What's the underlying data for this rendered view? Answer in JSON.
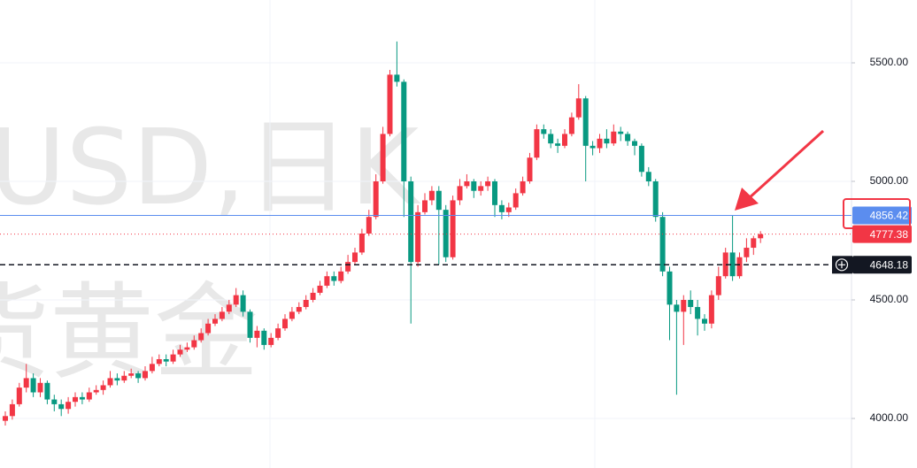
{
  "chart_data": {
    "type": "candlestick",
    "watermark": [
      "USD,日K",
      "货黄金"
    ],
    "up_color": "#f23645",
    "down_color": "#089981",
    "ylim": [
      3791,
      5765
    ],
    "yticks": [
      {
        "value": 4000,
        "label": "4000.00"
      },
      {
        "value": 4500,
        "label": "4500.00"
      },
      {
        "value": 5000,
        "label": "5000.00"
      },
      {
        "value": 5500,
        "label": "5500.00"
      }
    ],
    "grid": true,
    "open": [
      3990,
      4010,
      4060,
      4130,
      4170,
      4110,
      4150,
      4080,
      4060,
      4040,
      4070,
      4090,
      4080,
      4110,
      4120,
      4140,
      4170,
      4160,
      4180,
      4190,
      4170,
      4200,
      4230,
      4250,
      4240,
      4270,
      4290,
      4300,
      4330,
      4360,
      4400,
      4420,
      4450,
      4480,
      4520,
      4450,
      4340,
      4370,
      4310,
      4340,
      4380,
      4420,
      4450,
      4470,
      4500,
      4530,
      4560,
      4600,
      4580,
      4620,
      4660,
      4700,
      4780,
      4850,
      5000,
      5200,
      5450,
      5420,
      5000,
      4660,
      4870,
      4920,
      4960,
      4880,
      4680,
      4920,
      4980,
      5000,
      4960,
      4980,
      5000,
      4900,
      4870,
      4890,
      4950,
      5000,
      5100,
      5220,
      5200,
      5160,
      5150,
      5200,
      5270,
      5350,
      5150,
      5140,
      5180,
      5160,
      5210,
      5200,
      5170,
      5150,
      5040,
      5000,
      4850,
      4620,
      4480,
      4450,
      4500,
      4470,
      4420,
      4400,
      4520,
      4600,
      4700,
      4600,
      4680,
      4720,
      4760
    ],
    "high": [
      4030,
      4080,
      4150,
      4230,
      4190,
      4170,
      4160,
      4100,
      4080,
      4090,
      4110,
      4110,
      4130,
      4140,
      4160,
      4200,
      4190,
      4200,
      4210,
      4200,
      4220,
      4260,
      4270,
      4270,
      4290,
      4310,
      4320,
      4350,
      4380,
      4420,
      4440,
      4470,
      4500,
      4550,
      4540,
      4460,
      4390,
      4380,
      4360,
      4400,
      4440,
      4470,
      4490,
      4520,
      4550,
      4580,
      4620,
      4620,
      4640,
      4690,
      4720,
      4800,
      4880,
      5030,
      5230,
      5470,
      5590,
      5430,
      5020,
      4900,
      4950,
      4980,
      4980,
      4900,
      4940,
      5010,
      5030,
      5010,
      5000,
      5020,
      5010,
      4920,
      4910,
      4970,
      5020,
      5120,
      5240,
      5240,
      5220,
      5180,
      5220,
      5290,
      5410,
      5360,
      5170,
      5200,
      5220,
      5240,
      5230,
      5210,
      5180,
      5160,
      5060,
      5010,
      4870,
      4640,
      4500,
      4520,
      4540,
      4500,
      4440,
      4540,
      4640,
      4720,
      4856.42,
      4700,
      4760,
      4770,
      4790
    ],
    "low": [
      3970,
      3995,
      4050,
      4110,
      4090,
      4090,
      4060,
      4030,
      4010,
      4020,
      4050,
      4060,
      4070,
      4100,
      4100,
      4130,
      4140,
      4150,
      4170,
      4150,
      4160,
      4190,
      4220,
      4220,
      4230,
      4260,
      4280,
      4290,
      4320,
      4350,
      4390,
      4410,
      4440,
      4470,
      4430,
      4320,
      4300,
      4290,
      4300,
      4330,
      4370,
      4410,
      4440,
      4460,
      4490,
      4520,
      4550,
      4560,
      4570,
      4610,
      4650,
      4690,
      4770,
      4840,
      4990,
      5190,
      5400,
      4850,
      4400,
      4640,
      4860,
      4900,
      4650,
      4660,
      4670,
      4900,
      4970,
      4930,
      4940,
      4960,
      4850,
      4840,
      4850,
      4880,
      4940,
      4990,
      5090,
      5180,
      5140,
      5120,
      5140,
      5190,
      5260,
      5000,
      5110,
      5120,
      5140,
      5150,
      5170,
      5150,
      5110,
      5020,
      4980,
      4830,
      4600,
      4330,
      4100,
      4310,
      4440,
      4350,
      4370,
      4380,
      4500,
      4590,
      4580,
      4590,
      4660,
      4690,
      4740
    ],
    "close": [
      4010,
      4060,
      4130,
      4170,
      4110,
      4150,
      4080,
      4060,
      4040,
      4070,
      4090,
      4080,
      4110,
      4120,
      4140,
      4170,
      4160,
      4180,
      4190,
      4170,
      4200,
      4230,
      4250,
      4240,
      4270,
      4290,
      4300,
      4330,
      4360,
      4400,
      4420,
      4450,
      4480,
      4520,
      4450,
      4340,
      4370,
      4310,
      4340,
      4380,
      4420,
      4450,
      4470,
      4500,
      4530,
      4560,
      4600,
      4580,
      4620,
      4660,
      4700,
      4780,
      4850,
      5000,
      5200,
      5450,
      5420,
      5000,
      4660,
      4870,
      4920,
      4960,
      4880,
      4680,
      4920,
      4980,
      5000,
      4960,
      4980,
      5000,
      4900,
      4870,
      4890,
      4950,
      5000,
      5100,
      5220,
      5200,
      5160,
      5150,
      5200,
      5270,
      5350,
      5150,
      5140,
      5180,
      5160,
      5210,
      5200,
      5170,
      5150,
      5040,
      5000,
      4850,
      4620,
      4480,
      4450,
      4500,
      4470,
      4420,
      4400,
      4520,
      4600,
      4700,
      4600,
      4680,
      4720,
      4760,
      4777.38
    ],
    "price_lines": [
      {
        "value": 4856.42,
        "color": "#5b8def",
        "style": "solid"
      },
      {
        "value": 4777.38,
        "color": "#f23645",
        "style": "dotted"
      },
      {
        "value": 4648.18,
        "color": "#131722",
        "style": "dashed"
      }
    ]
  }
}
